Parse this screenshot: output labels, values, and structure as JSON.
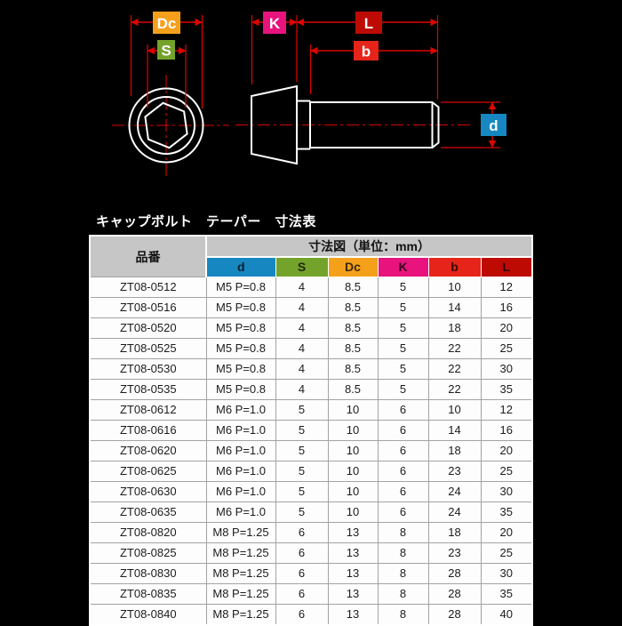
{
  "colors": {
    "background": "#000000",
    "drawing_stroke": "#ffffff",
    "dimension": "#dc0500",
    "d": "#1787c2",
    "s": "#74a32b",
    "dc": "#f5a01b",
    "k": "#e8137d",
    "b": "#e62419",
    "l": "#bd0b04",
    "header_gray": "#c6c6c6"
  },
  "diagram": {
    "labels": {
      "dc": "Dc",
      "s": "S",
      "k": "K",
      "l": "L",
      "b": "b",
      "d": "d"
    }
  },
  "table": {
    "title": "キャップボルト　テーパー　寸法表",
    "part_number_header": "品番",
    "dimensions_header": "寸法図（単位：mm）",
    "columns": [
      {
        "label": "d",
        "color_key": "d"
      },
      {
        "label": "S",
        "color_key": "s"
      },
      {
        "label": "Dc",
        "color_key": "dc"
      },
      {
        "label": "K",
        "color_key": "k"
      },
      {
        "label": "b",
        "color_key": "b"
      },
      {
        "label": "L",
        "color_key": "l"
      }
    ],
    "rows": [
      [
        "ZT08-0512",
        "M5 P=0.8",
        "4",
        "8.5",
        "5",
        "10",
        "12"
      ],
      [
        "ZT08-0516",
        "M5 P=0.8",
        "4",
        "8.5",
        "5",
        "14",
        "16"
      ],
      [
        "ZT08-0520",
        "M5 P=0.8",
        "4",
        "8.5",
        "5",
        "18",
        "20"
      ],
      [
        "ZT08-0525",
        "M5 P=0.8",
        "4",
        "8.5",
        "5",
        "22",
        "25"
      ],
      [
        "ZT08-0530",
        "M5 P=0.8",
        "4",
        "8.5",
        "5",
        "22",
        "30"
      ],
      [
        "ZT08-0535",
        "M5 P=0.8",
        "4",
        "8.5",
        "5",
        "22",
        "35"
      ],
      [
        "ZT08-0612",
        "M6 P=1.0",
        "5",
        "10",
        "6",
        "10",
        "12"
      ],
      [
        "ZT08-0616",
        "M6 P=1.0",
        "5",
        "10",
        "6",
        "14",
        "16"
      ],
      [
        "ZT08-0620",
        "M6 P=1.0",
        "5",
        "10",
        "6",
        "18",
        "20"
      ],
      [
        "ZT08-0625",
        "M6 P=1.0",
        "5",
        "10",
        "6",
        "23",
        "25"
      ],
      [
        "ZT08-0630",
        "M6 P=1.0",
        "5",
        "10",
        "6",
        "24",
        "30"
      ],
      [
        "ZT08-0635",
        "M6 P=1.0",
        "5",
        "10",
        "6",
        "24",
        "35"
      ],
      [
        "ZT08-0820",
        "M8 P=1.25",
        "6",
        "13",
        "8",
        "18",
        "20"
      ],
      [
        "ZT08-0825",
        "M8 P=1.25",
        "6",
        "13",
        "8",
        "23",
        "25"
      ],
      [
        "ZT08-0830",
        "M8 P=1.25",
        "6",
        "13",
        "8",
        "28",
        "30"
      ],
      [
        "ZT08-0835",
        "M8 P=1.25",
        "6",
        "13",
        "8",
        "28",
        "35"
      ],
      [
        "ZT08-0840",
        "M8 P=1.25",
        "6",
        "13",
        "8",
        "28",
        "40"
      ]
    ]
  }
}
